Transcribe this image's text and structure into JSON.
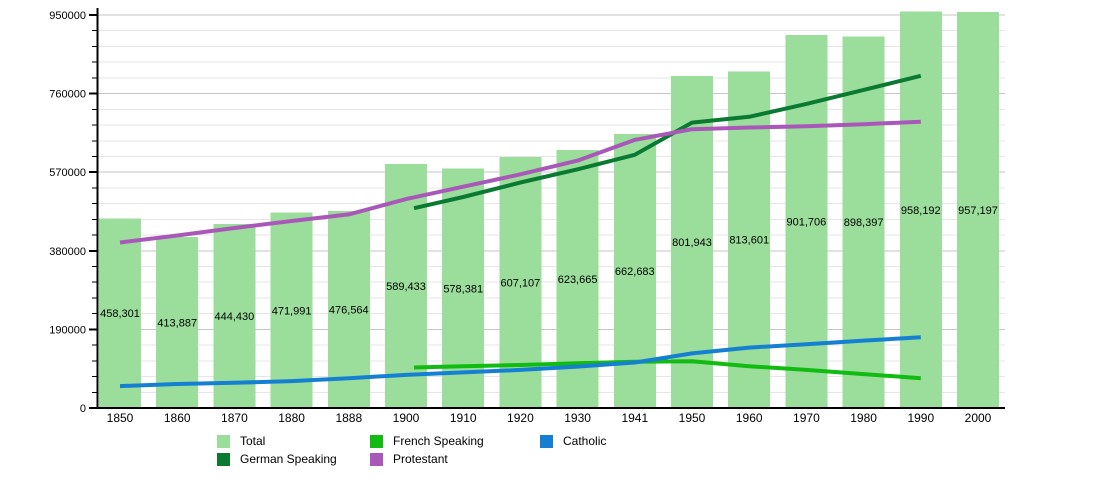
{
  "chart_data": {
    "type": "bar",
    "title": "",
    "xlabel": "",
    "ylabel": "",
    "categories": [
      "1850",
      "1860",
      "1870",
      "1880",
      "1888",
      "1900",
      "1910",
      "1920",
      "1930",
      "1941",
      "1950",
      "1960",
      "1970",
      "1980",
      "1990",
      "2000"
    ],
    "ylim": [
      0,
      950000
    ],
    "ytick_values": [
      0,
      190000,
      380000,
      570000,
      760000,
      950000
    ],
    "ytick_labels": [
      "0",
      "190000",
      "380000",
      "570000",
      "760000",
      "950000"
    ],
    "minor_grid_step": 38000,
    "grid": "on",
    "legend_position": "bottom",
    "bar_series": {
      "name": "Total",
      "color": "#9BDE9B",
      "values": [
        458301,
        413887,
        444430,
        471991,
        476564,
        589433,
        578381,
        607107,
        623665,
        662683,
        801943,
        813601,
        901706,
        898397,
        958192,
        957197
      ]
    },
    "bar_labels": [
      "458,301",
      "413,887",
      "444,430",
      "471,991",
      "476,564",
      "589,433",
      "578,381",
      "607,107",
      "623,665",
      "662,683",
      "801,943",
      "813,601",
      "901,706",
      "898,397",
      "958,192",
      "957,197"
    ],
    "line_series": [
      {
        "name": "German Speaking",
        "slug": "german-speaking",
        "color": "#0A7A33",
        "start_index": 5,
        "values": [
          483000,
          510000,
          545000,
          577000,
          612000,
          690000,
          704000,
          735000,
          769000,
          803000
        ]
      },
      {
        "name": "French Speaking",
        "slug": "french-speaking",
        "color": "#11BB11",
        "start_index": 5,
        "values": [
          98000,
          101000,
          104000,
          108000,
          112000,
          113000,
          101000,
          92000,
          82000,
          72000
        ]
      },
      {
        "name": "Catholic",
        "slug": "catholic",
        "color": "#1580D2",
        "start_index": 0,
        "values": [
          53000,
          58000,
          61000,
          65000,
          72000,
          80000,
          86000,
          92000,
          100000,
          110000,
          132000,
          146000,
          154000,
          163000,
          171000
        ]
      },
      {
        "name": "Protestant",
        "slug": "protestant",
        "color": "#A958B9",
        "start_index": 0,
        "values": [
          400000,
          417000,
          435000,
          452000,
          468000,
          505000,
          535000,
          565000,
          598000,
          648000,
          674000,
          678000,
          681000,
          686000,
          692000
        ]
      }
    ],
    "colors": {
      "axis": "#000000",
      "major_grid": "#c6c6c6",
      "minor_grid": "#e6e6e6",
      "text": "#000000",
      "background": "#ffffff"
    }
  },
  "legend": {
    "items": [
      {
        "label": "Total",
        "slug": "total",
        "color": "#9BDE9B"
      },
      {
        "label": "German Speaking",
        "slug": "german-speaking",
        "color": "#0A7A33"
      },
      {
        "label": "French Speaking",
        "slug": "french-speaking",
        "color": "#11BB11"
      },
      {
        "label": "Protestant",
        "slug": "protestant",
        "color": "#A958B9"
      },
      {
        "label": "Catholic",
        "slug": "catholic",
        "color": "#1580D2"
      }
    ]
  }
}
